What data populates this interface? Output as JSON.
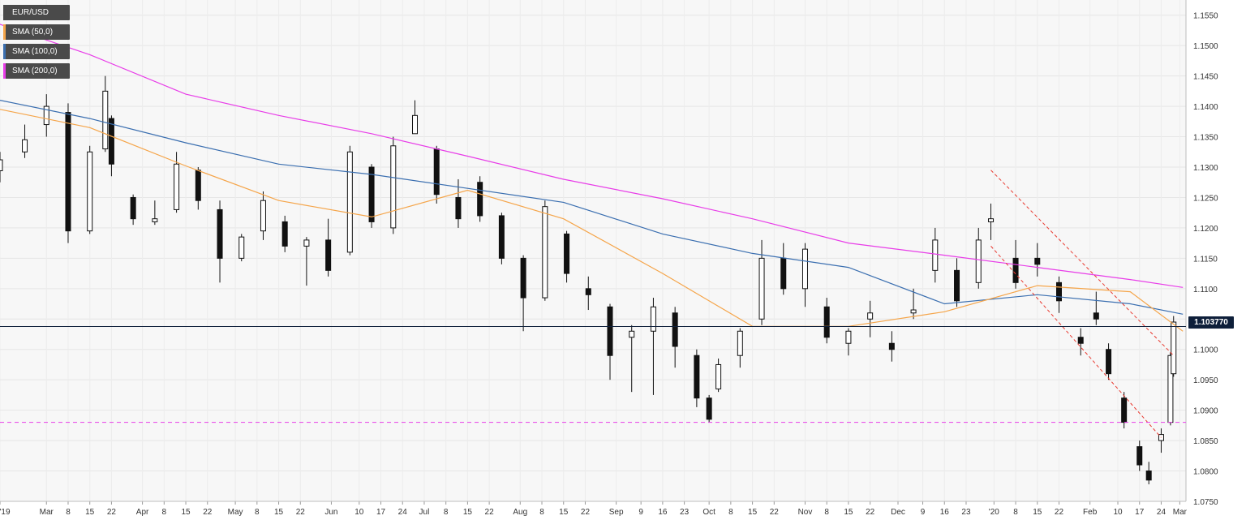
{
  "instrument": "EUR/USD",
  "legend": [
    {
      "label": "EUR/USD",
      "color": "#4a4a4a"
    },
    {
      "label": "SMA (50,0)",
      "color": "#f5a54a"
    },
    {
      "label": "SMA (100,0)",
      "color": "#3b6fb0"
    },
    {
      "label": "SMA (200,0)",
      "color": "#e83de8"
    }
  ],
  "current_price_label": "1.103770",
  "chart_data": {
    "type": "candlestick",
    "y_axis": {
      "min": 1.075,
      "max": 1.1575,
      "position": "right",
      "ticks": [
        "1.1550",
        "1.1500",
        "1.1450",
        "1.1400",
        "1.1350",
        "1.1300",
        "1.1250",
        "1.1200",
        "1.1150",
        "1.1100",
        "1.1050",
        "1.1000",
        "1.0950",
        "1.0900",
        "1.0850",
        "1.0800",
        "1.0750"
      ]
    },
    "x_axis": {
      "labels": [
        "'19",
        "Mar",
        "8",
        "15",
        "22",
        "Apr",
        "8",
        "15",
        "22",
        "May",
        "8",
        "15",
        "22",
        "Jun",
        "10",
        "17",
        "24",
        "Jul",
        "8",
        "15",
        "22",
        "Aug",
        "8",
        "15",
        "22",
        "Sep",
        "9",
        "16",
        "23",
        "Oct",
        "8",
        "15",
        "22",
        "Nov",
        "8",
        "15",
        "22",
        "Dec",
        "9",
        "16",
        "23",
        "'20",
        "8",
        "15",
        "22",
        "Feb",
        "10",
        "17",
        "24",
        "Mar"
      ]
    },
    "grid": true,
    "horizontal_lines": [
      {
        "name": "support",
        "value": 1.088,
        "style": "dashed",
        "color": "#e83de8"
      },
      {
        "name": "current-price",
        "value": 1.10377,
        "style": "solid",
        "color": "#0e1f3a"
      }
    ],
    "trend_channel": [
      {
        "from": {
          "date": "2019-12-31",
          "price": 1.1295
        },
        "to": {
          "date": "2020-02-28",
          "price": 1.099
        }
      },
      {
        "from": {
          "date": "2019-12-31",
          "price": 1.117
        },
        "to": {
          "date": "2020-02-24",
          "price": 1.0855
        }
      }
    ],
    "series": [
      {
        "name": "SMA (200,0)",
        "color": "#e83de8",
        "points": [
          [
            "2019-02-14",
            1.1535
          ],
          [
            "2019-03-15",
            1.1485
          ],
          [
            "2019-04-15",
            1.142
          ],
          [
            "2019-05-15",
            1.1385
          ],
          [
            "2019-06-14",
            1.1355
          ],
          [
            "2019-07-15",
            1.1318
          ],
          [
            "2019-08-15",
            1.128
          ],
          [
            "2019-09-16",
            1.1248
          ],
          [
            "2019-10-15",
            1.1215
          ],
          [
            "2019-11-15",
            1.1175
          ],
          [
            "2019-12-16",
            1.1155
          ],
          [
            "2020-01-15",
            1.1135
          ],
          [
            "2020-02-14",
            1.1115
          ],
          [
            "2020-03-02",
            1.1102
          ]
        ]
      },
      {
        "name": "SMA (100,0)",
        "color": "#3b6fb0",
        "points": [
          [
            "2019-02-14",
            1.141
          ],
          [
            "2019-03-15",
            1.138
          ],
          [
            "2019-04-15",
            1.134
          ],
          [
            "2019-05-15",
            1.1305
          ],
          [
            "2019-06-14",
            1.1288
          ],
          [
            "2019-07-15",
            1.1265
          ],
          [
            "2019-08-15",
            1.1242
          ],
          [
            "2019-09-16",
            1.119
          ],
          [
            "2019-10-15",
            1.1158
          ],
          [
            "2019-11-15",
            1.1135
          ],
          [
            "2019-12-16",
            1.1075
          ],
          [
            "2020-01-15",
            1.109
          ],
          [
            "2020-02-14",
            1.1075
          ],
          [
            "2020-03-02",
            1.1058
          ]
        ]
      },
      {
        "name": "SMA (50,0)",
        "color": "#f5a54a",
        "points": [
          [
            "2019-02-14",
            1.1395
          ],
          [
            "2019-03-15",
            1.1365
          ],
          [
            "2019-04-15",
            1.1302
          ],
          [
            "2019-05-15",
            1.1245
          ],
          [
            "2019-06-14",
            1.1218
          ],
          [
            "2019-07-15",
            1.1262
          ],
          [
            "2019-08-15",
            1.1215
          ],
          [
            "2019-09-16",
            1.1125
          ],
          [
            "2019-10-15",
            1.1038
          ],
          [
            "2019-11-15",
            1.1038
          ],
          [
            "2019-12-16",
            1.1062
          ],
          [
            "2020-01-15",
            1.1105
          ],
          [
            "2020-02-14",
            1.1095
          ],
          [
            "2020-03-02",
            1.103
          ]
        ]
      }
    ],
    "candles": [
      [
        "2019-02-14",
        1.1294,
        1.1325,
        1.1275,
        1.1312
      ],
      [
        "2019-02-22",
        1.1325,
        1.137,
        1.1315,
        1.1345
      ],
      [
        "2019-03-01",
        1.137,
        1.142,
        1.135,
        1.14
      ],
      [
        "2019-03-08",
        1.139,
        1.1405,
        1.1175,
        1.1195
      ],
      [
        "2019-03-15",
        1.1195,
        1.1335,
        1.119,
        1.1325
      ],
      [
        "2019-03-20",
        1.133,
        1.145,
        1.1325,
        1.1425
      ],
      [
        "2019-03-22",
        1.138,
        1.1385,
        1.1285,
        1.1305
      ],
      [
        "2019-03-29",
        1.125,
        1.1255,
        1.1205,
        1.1215
      ],
      [
        "2019-04-05",
        1.121,
        1.1245,
        1.1205,
        1.1215
      ],
      [
        "2019-04-12",
        1.123,
        1.1325,
        1.1225,
        1.1305
      ],
      [
        "2019-04-19",
        1.1295,
        1.13,
        1.123,
        1.1245
      ],
      [
        "2019-04-26",
        1.123,
        1.1245,
        1.111,
        1.115
      ],
      [
        "2019-05-03",
        1.115,
        1.119,
        1.1145,
        1.1185
      ],
      [
        "2019-05-10",
        1.1195,
        1.126,
        1.118,
        1.1245
      ],
      [
        "2019-05-17",
        1.121,
        1.122,
        1.116,
        1.117
      ],
      [
        "2019-05-24",
        1.117,
        1.1185,
        1.1105,
        1.118
      ],
      [
        "2019-05-31",
        1.118,
        1.1215,
        1.112,
        1.113
      ],
      [
        "2019-06-07",
        1.116,
        1.1335,
        1.1155,
        1.1325
      ],
      [
        "2019-06-14",
        1.13,
        1.1305,
        1.12,
        1.121
      ],
      [
        "2019-06-21",
        1.12,
        1.135,
        1.119,
        1.1335
      ],
      [
        "2019-06-28",
        1.1355,
        1.141,
        1.1355,
        1.1385
      ],
      [
        "2019-07-05",
        1.133,
        1.1335,
        1.124,
        1.1255
      ],
      [
        "2019-07-12",
        1.125,
        1.128,
        1.12,
        1.1215
      ],
      [
        "2019-07-19",
        1.1275,
        1.1285,
        1.121,
        1.122
      ],
      [
        "2019-07-26",
        1.122,
        1.1225,
        1.114,
        1.115
      ],
      [
        "2019-08-02",
        1.115,
        1.1155,
        1.103,
        1.1085
      ],
      [
        "2019-08-09",
        1.1085,
        1.1245,
        1.108,
        1.1235
      ],
      [
        "2019-08-16",
        1.119,
        1.1195,
        1.111,
        1.1125
      ],
      [
        "2019-08-23",
        1.11,
        1.112,
        1.1065,
        1.109
      ],
      [
        "2019-08-30",
        1.107,
        1.1075,
        1.095,
        1.099
      ],
      [
        "2019-09-06",
        1.102,
        1.104,
        1.093,
        1.103
      ],
      [
        "2019-09-13",
        1.103,
        1.1085,
        1.0925,
        1.107
      ],
      [
        "2019-09-20",
        1.106,
        1.107,
        1.097,
        1.1005
      ],
      [
        "2019-09-27",
        1.099,
        1.1,
        1.0905,
        1.092
      ],
      [
        "2019-10-01",
        1.092,
        1.0925,
        1.088,
        1.0885
      ],
      [
        "2019-10-04",
        1.0935,
        1.0985,
        1.093,
        1.0975
      ],
      [
        "2019-10-11",
        1.099,
        1.1035,
        1.097,
        1.103
      ],
      [
        "2019-10-18",
        1.105,
        1.118,
        1.104,
        1.115
      ],
      [
        "2019-10-25",
        1.115,
        1.1175,
        1.109,
        1.11
      ],
      [
        "2019-11-01",
        1.11,
        1.1175,
        1.107,
        1.1165
      ],
      [
        "2019-11-08",
        1.107,
        1.1085,
        1.101,
        1.102
      ],
      [
        "2019-11-15",
        1.101,
        1.1035,
        1.099,
        1.103
      ],
      [
        "2019-11-22",
        1.105,
        1.108,
        1.102,
        1.106
      ],
      [
        "2019-11-29",
        1.101,
        1.103,
        1.098,
        1.1
      ],
      [
        "2019-12-06",
        1.106,
        1.11,
        1.105,
        1.1065
      ],
      [
        "2019-12-13",
        1.113,
        1.12,
        1.111,
        1.118
      ],
      [
        "2019-12-20",
        1.113,
        1.115,
        1.107,
        1.108
      ],
      [
        "2019-12-27",
        1.111,
        1.12,
        1.11,
        1.118
      ],
      [
        "2019-12-31",
        1.121,
        1.124,
        1.118,
        1.1215
      ],
      [
        "2020-01-08",
        1.115,
        1.118,
        1.11,
        1.111
      ],
      [
        "2020-01-15",
        1.115,
        1.1175,
        1.112,
        1.114
      ],
      [
        "2020-01-22",
        1.111,
        1.112,
        1.106,
        1.108
      ],
      [
        "2020-01-29",
        1.102,
        1.1035,
        1.099,
        1.101
      ],
      [
        "2020-02-03",
        1.106,
        1.1095,
        1.104,
        1.105
      ],
      [
        "2020-02-07",
        1.1,
        1.101,
        1.095,
        1.096
      ],
      [
        "2020-02-12",
        1.092,
        1.093,
        1.087,
        1.088
      ],
      [
        "2020-02-17",
        1.084,
        1.085,
        1.08,
        1.081
      ],
      [
        "2020-02-20",
        1.08,
        1.0815,
        1.0778,
        1.0785
      ],
      [
        "2020-02-24",
        1.085,
        1.087,
        1.083,
        1.086
      ],
      [
        "2020-02-27",
        1.088,
        1.0995,
        1.0875,
        1.099
      ],
      [
        "2020-02-28",
        1.096,
        1.1055,
        1.0955,
        1.1045
      ]
    ]
  }
}
